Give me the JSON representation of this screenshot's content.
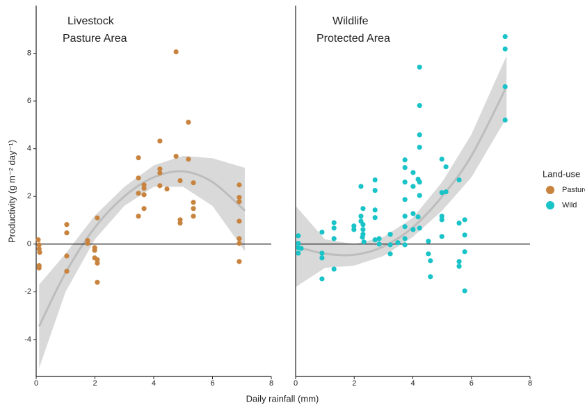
{
  "shared": {
    "xlabel": "Daily rainfall (mm)",
    "ylabel": "Productivity (g m⁻² day⁻¹)",
    "legend_title": "Land-use"
  },
  "chart_data": [
    {
      "type": "scatter",
      "title_lines": [
        "Livestock",
        "Pasture Area"
      ],
      "xlim": [
        0,
        8
      ],
      "ylim": [
        -5.55,
        10.0
      ],
      "xticks": [
        0,
        2,
        4,
        6,
        8
      ],
      "yticks": [
        -4,
        -2,
        0,
        2,
        4,
        6,
        8
      ],
      "hline": 0,
      "series": [
        {
          "name": "Pasture",
          "color": "#c8843e",
          "x": [
            0.07,
            0.1,
            0.1,
            0.12,
            0.1,
            0.1,
            1.04,
            1.04,
            1.04,
            1.04,
            1.75,
            1.75,
            1.99,
            1.99,
            1.99,
            2.08,
            2.08,
            2.08,
            2.08,
            3.48,
            3.48,
            3.48,
            3.48,
            3.67,
            3.67,
            3.67,
            3.67,
            4.21,
            4.21,
            4.21,
            4.21,
            4.45,
            4.76,
            4.76,
            4.9,
            4.9,
            4.9,
            5.18,
            5.18,
            5.35,
            5.35,
            5.35,
            5.35,
            6.91,
            6.91,
            6.91,
            6.91,
            6.91,
            6.91,
            6.91
          ],
          "values": [
            0.18,
            -0.03,
            -0.2,
            -0.35,
            -0.9,
            -1.0,
            0.82,
            0.47,
            -0.5,
            -1.14,
            0.15,
            0.03,
            -0.15,
            -0.26,
            -0.58,
            1.1,
            -0.65,
            -0.8,
            -1.6,
            1.17,
            2.77,
            3.62,
            2.13,
            1.49,
            2.48,
            2.34,
            2.07,
            4.32,
            3.15,
            2.98,
            2.45,
            2.31,
            8.06,
            3.68,
            2.66,
            1.02,
            0.88,
            5.11,
            3.56,
            2.57,
            1.75,
            1.49,
            1.17,
            2.48,
            1.96,
            1.78,
            0.96,
            0.23,
            0.03,
            -0.73
          ]
        }
      ],
      "fit": {
        "x": [
          0.1,
          1,
          2,
          3,
          4,
          5,
          6,
          7.1
        ],
        "values": [
          -3.45,
          -1.2,
          0.7,
          2.0,
          2.8,
          3.05,
          2.6,
          1.4
        ],
        "lower": [
          -5.2,
          -2.0,
          0.2,
          1.6,
          2.4,
          2.4,
          1.6,
          -0.3
        ],
        "upper": [
          -1.7,
          -0.4,
          1.2,
          2.4,
          3.3,
          3.7,
          3.6,
          3.2
        ]
      }
    },
    {
      "type": "scatter",
      "title_lines": [
        "Wildlife",
        "Protected Area"
      ],
      "xlim": [
        0,
        8
      ],
      "ylim": [
        -5.55,
        10.0
      ],
      "xticks": [
        0,
        2,
        4,
        6,
        8
      ],
      "hline": 0,
      "series": [
        {
          "name": "Wild",
          "color": "#19c3c8",
          "x": [
            0.09,
            0.09,
            0.09,
            0.19,
            0.09,
            0.9,
            0.9,
            0.9,
            0.9,
            1.31,
            1.31,
            1.31,
            1.31,
            1.99,
            1.99,
            2.23,
            2.23,
            2.23,
            2.28,
            2.3,
            2.3,
            2.3,
            2.3,
            2.33,
            2.71,
            2.71,
            2.71,
            2.71,
            2.71,
            2.85,
            2.85,
            3.23,
            3.23,
            3.23,
            3.49,
            3.73,
            3.73,
            3.73,
            3.73,
            3.73,
            3.73,
            3.73,
            3.73,
            4.01,
            4.01,
            4.01,
            4.01,
            4.18,
            4.18,
            4.23,
            4.23,
            4.23,
            4.23,
            4.23,
            4.23,
            4.23,
            4.53,
            4.53,
            4.6,
            4.6,
            4.99,
            4.99,
            4.99,
            4.99,
            4.99,
            5.13,
            5.13,
            5.58,
            5.58,
            5.58,
            5.58,
            5.77,
            5.77,
            5.77,
            5.77,
            7.15,
            7.15,
            7.15,
            7.15
          ],
          "values": [
            0.35,
            0.03,
            -0.15,
            -0.18,
            -0.38,
            0.5,
            -0.38,
            -0.58,
            -1.46,
            0.9,
            0.67,
            0.23,
            -1.05,
            0.61,
            0.76,
            2.42,
            1.17,
            0.96,
            0.29,
            1.49,
            0.82,
            0.61,
            0.41,
            0.09,
            2.69,
            2.25,
            1.43,
            1.11,
            0.18,
            0,
            0.23,
            -0.03,
            0.41,
            -0.41,
            0.06,
            3.53,
            3.21,
            2.6,
            1.87,
            1.17,
            0.73,
            0.23,
            -0.03,
            3.0,
            2.42,
            1.28,
            0.61,
            2.72,
            1.14,
            7.42,
            5.81,
            4.58,
            4.06,
            2.6,
            2.04,
            0.67,
            0.12,
            -0.41,
            -0.7,
            -1.37,
            3.56,
            2.16,
            1.17,
            1.02,
            0.32,
            2.19,
            3.24,
            2.69,
            0.88,
            -0.73,
            -0.93,
            1.02,
            0.38,
            -0.32,
            -1.96,
            8.7,
            8.18,
            6.6,
            5.2
          ]
        }
      ],
      "fit": {
        "x": [
          0,
          1,
          2,
          3,
          4,
          5,
          6,
          7.2
        ],
        "values": [
          -0.1,
          -0.4,
          -0.45,
          -0.1,
          0.7,
          2.0,
          3.7,
          6.6
        ],
        "lower": [
          -1.8,
          -1.0,
          -0.9,
          -0.5,
          0.3,
          1.4,
          2.8,
          5.3
        ],
        "upper": [
          1.6,
          0.2,
          0.0,
          0.3,
          1.1,
          2.6,
          4.6,
          7.9
        ]
      }
    }
  ]
}
